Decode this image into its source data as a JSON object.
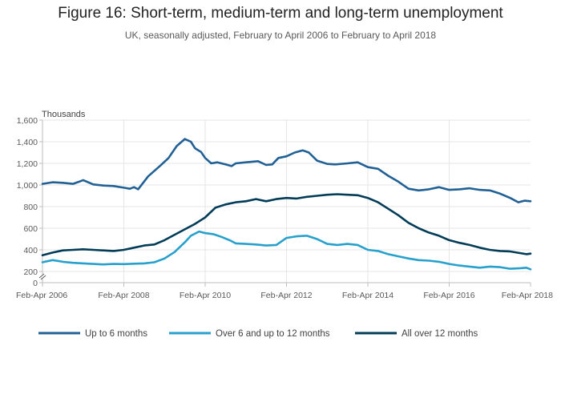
{
  "title": "Figure 16: Short-term, medium-term and long-term unemployment",
  "subtitle": "UK, seasonally adjusted, February to April 2006 to February to April 2018",
  "chart_data": {
    "type": "line",
    "ylabel": "Thousands",
    "ylim": [
      0,
      1600
    ],
    "y_axis_break": true,
    "yticks": [
      0,
      200,
      400,
      600,
      800,
      1000,
      1200,
      1400,
      1600
    ],
    "ytick_labels": [
      "0",
      "200",
      "400",
      "600",
      "800",
      "1,000",
      "1,200",
      "1,400",
      "1,600"
    ],
    "xlim": [
      2006,
      2018
    ],
    "xticks": [
      2006,
      2008,
      2010,
      2012,
      2014,
      2016,
      2018
    ],
    "xtick_labels": [
      "Feb-Apr 2006",
      "Feb-Apr 2008",
      "Feb-Apr 2010",
      "Feb-Apr 2012",
      "Feb-Apr 2014",
      "Feb-Apr 2016",
      "Feb-Apr 2018"
    ],
    "grid": true,
    "legend_position": "bottom",
    "series": [
      {
        "name": "Up to 6 months",
        "color": "#206095",
        "points": [
          [
            2006.0,
            1010
          ],
          [
            2006.25,
            1025
          ],
          [
            2006.5,
            1020
          ],
          [
            2006.75,
            1010
          ],
          [
            2006.9,
            1030
          ],
          [
            2007.0,
            1045
          ],
          [
            2007.25,
            1005
          ],
          [
            2007.5,
            995
          ],
          [
            2007.75,
            990
          ],
          [
            2008.0,
            975
          ],
          [
            2008.15,
            965
          ],
          [
            2008.25,
            980
          ],
          [
            2008.35,
            960
          ],
          [
            2008.6,
            1080
          ],
          [
            2008.9,
            1180
          ],
          [
            2009.1,
            1250
          ],
          [
            2009.3,
            1360
          ],
          [
            2009.5,
            1425
          ],
          [
            2009.65,
            1400
          ],
          [
            2009.75,
            1340
          ],
          [
            2009.9,
            1305
          ],
          [
            2010.0,
            1250
          ],
          [
            2010.15,
            1200
          ],
          [
            2010.3,
            1210
          ],
          [
            2010.5,
            1190
          ],
          [
            2010.65,
            1175
          ],
          [
            2010.75,
            1200
          ],
          [
            2011.0,
            1210
          ],
          [
            2011.3,
            1220
          ],
          [
            2011.5,
            1185
          ],
          [
            2011.65,
            1190
          ],
          [
            2011.8,
            1250
          ],
          [
            2012.0,
            1265
          ],
          [
            2012.2,
            1300
          ],
          [
            2012.4,
            1320
          ],
          [
            2012.55,
            1300
          ],
          [
            2012.75,
            1225
          ],
          [
            2013.0,
            1195
          ],
          [
            2013.2,
            1190
          ],
          [
            2013.5,
            1200
          ],
          [
            2013.75,
            1210
          ],
          [
            2014.0,
            1165
          ],
          [
            2014.25,
            1150
          ],
          [
            2014.5,
            1085
          ],
          [
            2014.75,
            1030
          ],
          [
            2015.0,
            965
          ],
          [
            2015.25,
            950
          ],
          [
            2015.5,
            960
          ],
          [
            2015.75,
            980
          ],
          [
            2016.0,
            955
          ],
          [
            2016.25,
            960
          ],
          [
            2016.5,
            970
          ],
          [
            2016.75,
            955
          ],
          [
            2017.0,
            950
          ],
          [
            2017.25,
            920
          ],
          [
            2017.5,
            880
          ],
          [
            2017.7,
            840
          ],
          [
            2017.85,
            855
          ],
          [
            2018.0,
            850
          ]
        ]
      },
      {
        "name": "Over 6 and up to 12 months",
        "color": "#27a0cc",
        "points": [
          [
            2006.0,
            285
          ],
          [
            2006.25,
            305
          ],
          [
            2006.5,
            290
          ],
          [
            2006.75,
            280
          ],
          [
            2007.0,
            275
          ],
          [
            2007.25,
            270
          ],
          [
            2007.5,
            265
          ],
          [
            2007.75,
            270
          ],
          [
            2008.0,
            268
          ],
          [
            2008.25,
            272
          ],
          [
            2008.5,
            275
          ],
          [
            2008.75,
            285
          ],
          [
            2009.0,
            320
          ],
          [
            2009.25,
            380
          ],
          [
            2009.5,
            470
          ],
          [
            2009.65,
            530
          ],
          [
            2009.85,
            570
          ],
          [
            2010.0,
            555
          ],
          [
            2010.2,
            545
          ],
          [
            2010.4,
            520
          ],
          [
            2010.6,
            490
          ],
          [
            2010.75,
            460
          ],
          [
            2011.0,
            455
          ],
          [
            2011.25,
            450
          ],
          [
            2011.5,
            440
          ],
          [
            2011.75,
            445
          ],
          [
            2012.0,
            510
          ],
          [
            2012.25,
            525
          ],
          [
            2012.5,
            530
          ],
          [
            2012.75,
            500
          ],
          [
            2013.0,
            455
          ],
          [
            2013.25,
            445
          ],
          [
            2013.5,
            455
          ],
          [
            2013.75,
            445
          ],
          [
            2014.0,
            400
          ],
          [
            2014.25,
            390
          ],
          [
            2014.5,
            360
          ],
          [
            2014.75,
            340
          ],
          [
            2015.0,
            320
          ],
          [
            2015.25,
            305
          ],
          [
            2015.5,
            300
          ],
          [
            2015.75,
            290
          ],
          [
            2016.0,
            270
          ],
          [
            2016.25,
            255
          ],
          [
            2016.5,
            245
          ],
          [
            2016.75,
            235
          ],
          [
            2017.0,
            245
          ],
          [
            2017.25,
            240
          ],
          [
            2017.5,
            225
          ],
          [
            2017.75,
            230
          ],
          [
            2017.9,
            235
          ],
          [
            2018.0,
            220
          ]
        ]
      },
      {
        "name": "All over 12 months",
        "color": "#003c57",
        "points": [
          [
            2006.0,
            350
          ],
          [
            2006.25,
            375
          ],
          [
            2006.5,
            395
          ],
          [
            2006.75,
            400
          ],
          [
            2007.0,
            405
          ],
          [
            2007.25,
            400
          ],
          [
            2007.5,
            395
          ],
          [
            2007.75,
            390
          ],
          [
            2008.0,
            400
          ],
          [
            2008.25,
            420
          ],
          [
            2008.5,
            440
          ],
          [
            2008.75,
            450
          ],
          [
            2009.0,
            490
          ],
          [
            2009.25,
            540
          ],
          [
            2009.5,
            590
          ],
          [
            2009.75,
            640
          ],
          [
            2010.0,
            700
          ],
          [
            2010.25,
            790
          ],
          [
            2010.5,
            820
          ],
          [
            2010.75,
            840
          ],
          [
            2011.0,
            850
          ],
          [
            2011.25,
            870
          ],
          [
            2011.5,
            850
          ],
          [
            2011.75,
            870
          ],
          [
            2012.0,
            880
          ],
          [
            2012.25,
            875
          ],
          [
            2012.5,
            890
          ],
          [
            2012.75,
            900
          ],
          [
            2013.0,
            910
          ],
          [
            2013.25,
            915
          ],
          [
            2013.5,
            910
          ],
          [
            2013.75,
            905
          ],
          [
            2014.0,
            880
          ],
          [
            2014.25,
            840
          ],
          [
            2014.5,
            780
          ],
          [
            2014.75,
            720
          ],
          [
            2015.0,
            650
          ],
          [
            2015.25,
            600
          ],
          [
            2015.5,
            560
          ],
          [
            2015.75,
            530
          ],
          [
            2016.0,
            490
          ],
          [
            2016.25,
            465
          ],
          [
            2016.5,
            445
          ],
          [
            2016.75,
            420
          ],
          [
            2017.0,
            400
          ],
          [
            2017.25,
            390
          ],
          [
            2017.5,
            385
          ],
          [
            2017.75,
            370
          ],
          [
            2017.9,
            360
          ],
          [
            2018.0,
            365
          ]
        ]
      }
    ]
  }
}
